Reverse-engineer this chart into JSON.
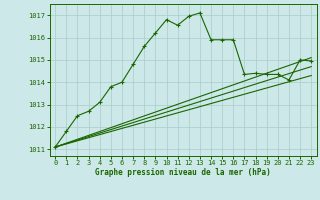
{
  "title": "Graphe pression niveau de la mer (hPa)",
  "xlim": [
    -0.5,
    23.5
  ],
  "ylim": [
    1010.7,
    1017.5
  ],
  "yticks": [
    1011,
    1012,
    1013,
    1014,
    1015,
    1016,
    1017
  ],
  "xticks": [
    0,
    1,
    2,
    3,
    4,
    5,
    6,
    7,
    8,
    9,
    10,
    11,
    12,
    13,
    14,
    15,
    16,
    17,
    18,
    19,
    20,
    21,
    22,
    23
  ],
  "bg_color": "#cce8e8",
  "grid_color": "#aacccc",
  "line_color": "#1a6600",
  "main_x": [
    0,
    1,
    2,
    3,
    4,
    5,
    6,
    7,
    8,
    9,
    10,
    11,
    12,
    13,
    14,
    15,
    16,
    17,
    18,
    19,
    20,
    21,
    22,
    23
  ],
  "main_y": [
    1011.1,
    1011.8,
    1012.5,
    1012.7,
    1013.1,
    1013.8,
    1014.0,
    1014.8,
    1015.6,
    1016.2,
    1016.8,
    1016.55,
    1016.95,
    1017.1,
    1015.9,
    1015.9,
    1015.9,
    1014.35,
    1014.4,
    1014.35,
    1014.35,
    1014.1,
    1015.0,
    1014.95
  ],
  "line2_x": [
    0,
    23
  ],
  "line2_y": [
    1011.1,
    1014.3
  ],
  "line3_x": [
    0,
    23
  ],
  "line3_y": [
    1011.1,
    1014.7
  ],
  "line4_x": [
    0,
    23
  ],
  "line4_y": [
    1011.1,
    1015.1
  ],
  "title_fontsize": 5.5,
  "tick_fontsize": 5.0
}
